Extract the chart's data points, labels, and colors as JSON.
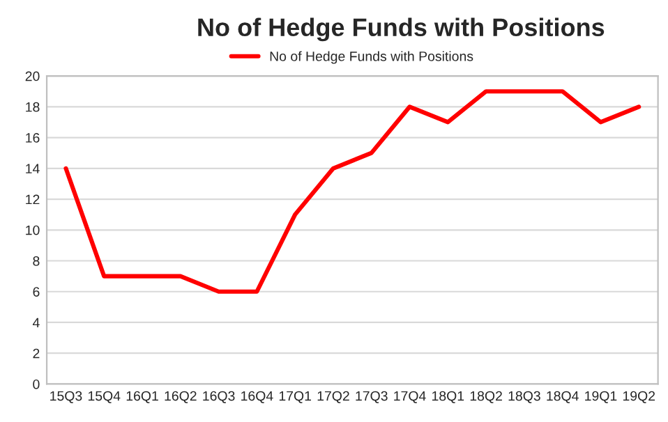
{
  "chart_data": {
    "type": "line",
    "title": "No of Hedge Funds with Positions",
    "categories": [
      "15Q3",
      "15Q4",
      "16Q1",
      "16Q2",
      "16Q3",
      "16Q4",
      "17Q1",
      "17Q2",
      "17Q3",
      "17Q4",
      "18Q1",
      "18Q2",
      "18Q3",
      "18Q4",
      "19Q1",
      "19Q2"
    ],
    "series": [
      {
        "name": "No of Hedge Funds with Positions",
        "color": "#ff0000",
        "values": [
          14,
          7,
          7,
          7,
          6,
          6,
          11,
          14,
          15,
          18,
          17,
          19,
          19,
          19,
          17,
          18
        ]
      }
    ],
    "ylim": [
      0,
      20
    ],
    "yticks": [
      0,
      2,
      4,
      6,
      8,
      10,
      12,
      14,
      16,
      18,
      20
    ],
    "grid": "y",
    "legend": "top",
    "marker": "none",
    "line_style": "solid"
  }
}
